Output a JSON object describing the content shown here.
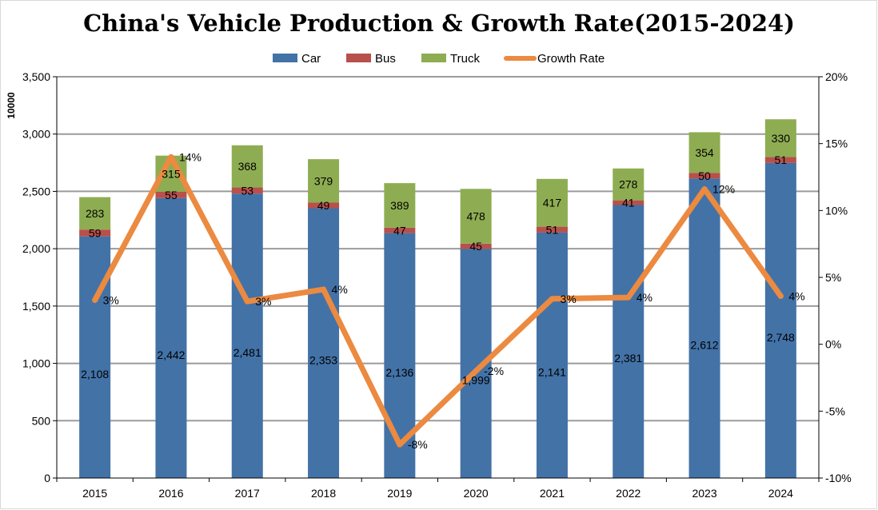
{
  "chart_data": {
    "type": "bar",
    "title": "China's Vehicle Production & Growth Rate(2015-2024)",
    "ylabel": "10000",
    "xlabel": "",
    "ylim": [
      0,
      3500
    ],
    "y2lim": [
      -10,
      20
    ],
    "y_ticks": [
      0,
      500,
      1000,
      1500,
      2000,
      2500,
      3000,
      3500
    ],
    "y_tick_labels": [
      "0",
      "500",
      "1,000",
      "1,500",
      "2,000",
      "2,500",
      "3,000",
      "3,500"
    ],
    "y2_ticks": [
      -10,
      -5,
      0,
      5,
      10,
      15,
      20
    ],
    "y2_tick_labels": [
      "-10%",
      "-5%",
      "0%",
      "5%",
      "10%",
      "15%",
      "20%"
    ],
    "categories": [
      "2015",
      "2016",
      "2017",
      "2018",
      "2019",
      "2020",
      "2021",
      "2022",
      "2023",
      "2024"
    ],
    "legend_position": "top-center",
    "grid": true,
    "series": [
      {
        "name": "Car",
        "kind": "bar",
        "color": "#4372a7",
        "values": [
          2108,
          2442,
          2481,
          2353,
          2136,
          1999,
          2141,
          2381,
          2612,
          2748
        ],
        "labels": [
          "2,108",
          "2,442",
          "2,481",
          "2,353",
          "2,136",
          "1,999",
          "2,141",
          "2,381",
          "2,612",
          "2,748"
        ]
      },
      {
        "name": "Bus",
        "kind": "bar",
        "color": "#b8504b",
        "values": [
          59,
          55,
          53,
          49,
          47,
          45,
          51,
          41,
          50,
          51
        ],
        "labels": [
          "59",
          "55",
          "53",
          "49",
          "47",
          "45",
          "51",
          "41",
          "50",
          "51"
        ]
      },
      {
        "name": "Truck",
        "kind": "bar",
        "color": "#8ead52",
        "values": [
          283,
          315,
          368,
          379,
          389,
          478,
          417,
          278,
          354,
          330
        ],
        "labels": [
          "283",
          "315",
          "368",
          "379",
          "389",
          "478",
          "417",
          "278",
          "354",
          "330"
        ]
      },
      {
        "name": "Growth Rate",
        "kind": "line",
        "axis": "right",
        "color": "#eb8a40",
        "values": [
          3.3,
          14,
          3.2,
          4.1,
          -7.5,
          -2,
          3.4,
          3.5,
          11.6,
          3.6
        ],
        "labels": [
          "3%",
          "14%",
          "3%",
          "4%",
          "-8%",
          "-2%",
          "3%",
          "4%",
          "12%",
          "4%"
        ]
      }
    ]
  }
}
